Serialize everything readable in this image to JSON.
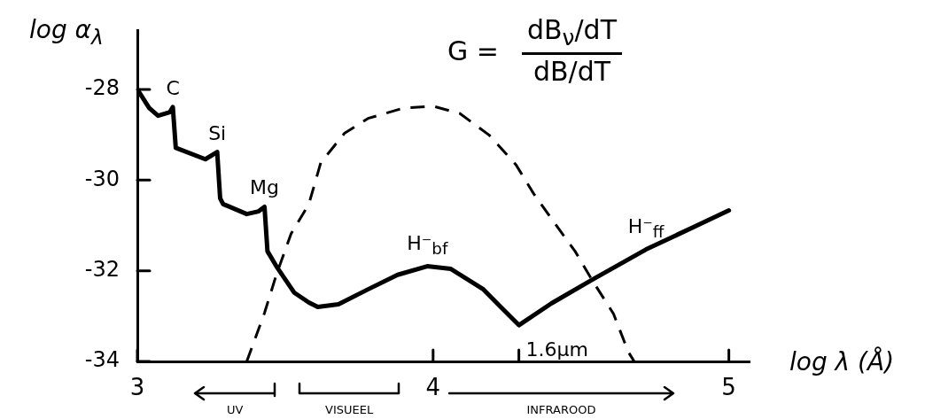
{
  "chart_data": {
    "type": "line",
    "xlabel": "log λ (Å)",
    "ylabel": "log α$_{λ}$",
    "xlim": [
      3,
      5.07
    ],
    "ylim": [
      -34,
      -26.7
    ],
    "xticks": [
      3,
      4,
      {
        "value": 4.29,
        "label": null
      },
      5
    ],
    "yticks": [
      -34,
      -32,
      -30,
      -28
    ],
    "marker": "none",
    "line_style": "solid",
    "series": [
      {
        "color": "#000000",
        "x": [
          3,
          3.04,
          3.07,
          3.11,
          3.12,
          3.13,
          3.23,
          3.27,
          3.28,
          3.29,
          3.37,
          3.41,
          3.43,
          3.44,
          3.47,
          3.53,
          3.58,
          3.61,
          3.68,
          3.78,
          3.88,
          3.98,
          4.06,
          4.17,
          4.23,
          4.29,
          4.4,
          4.54,
          4.72,
          5
        ],
        "values": [
          -28,
          -28.41,
          -28.58,
          -28.5,
          -28.39,
          -29.29,
          -29.54,
          -29.38,
          -30.4,
          -30.53,
          -30.75,
          -30.69,
          -30.59,
          -31.57,
          -31.9,
          -32.48,
          -32.7,
          -32.8,
          -32.74,
          -32.41,
          -32.09,
          -31.9,
          -31.96,
          -32.41,
          -32.81,
          -33.2,
          -32.72,
          -32.19,
          -31.53,
          -30.67
        ]
      },
      {
        "color": "#000000",
        "line_style": "dashed",
        "x": [
          3.37,
          3.43,
          3.47,
          3.52,
          3.58,
          3.62,
          3.7,
          3.78,
          3.9,
          4.0,
          4.09,
          4.19,
          4.28,
          4.34,
          4.41,
          4.48,
          4.54,
          4.61,
          4.66,
          4.68
        ],
        "values": [
          -34,
          -32.93,
          -32.09,
          -31.18,
          -30.53,
          -29.62,
          -28.97,
          -28.64,
          -28.41,
          -28.37,
          -28.53,
          -29.01,
          -29.66,
          -30.3,
          -30.94,
          -31.57,
          -32.23,
          -32.95,
          -33.79,
          -34
        ]
      }
    ],
    "annotations": [
      "G =",
      "dB$_{ν}$/dT",
      "dB/dT",
      "UV",
      "VISUEEL",
      "INFRAROOD",
      {
        "text": "C",
        "x": 3.12,
        "y": -28.39
      },
      {
        "text": "Si",
        "x": 3.27,
        "y": -29.38
      },
      {
        "text": "Mg",
        "x": 3.43,
        "y": -30.59
      },
      {
        "text": "H⁻$_{bf}$",
        "x": 3.98,
        "y": -31.9
      },
      {
        "text": "H⁻$_{ff}$",
        "x": 4.72,
        "y": -31.53
      },
      {
        "text": "1.6μm",
        "x": 4.29,
        "y": -33.2
      }
    ]
  }
}
